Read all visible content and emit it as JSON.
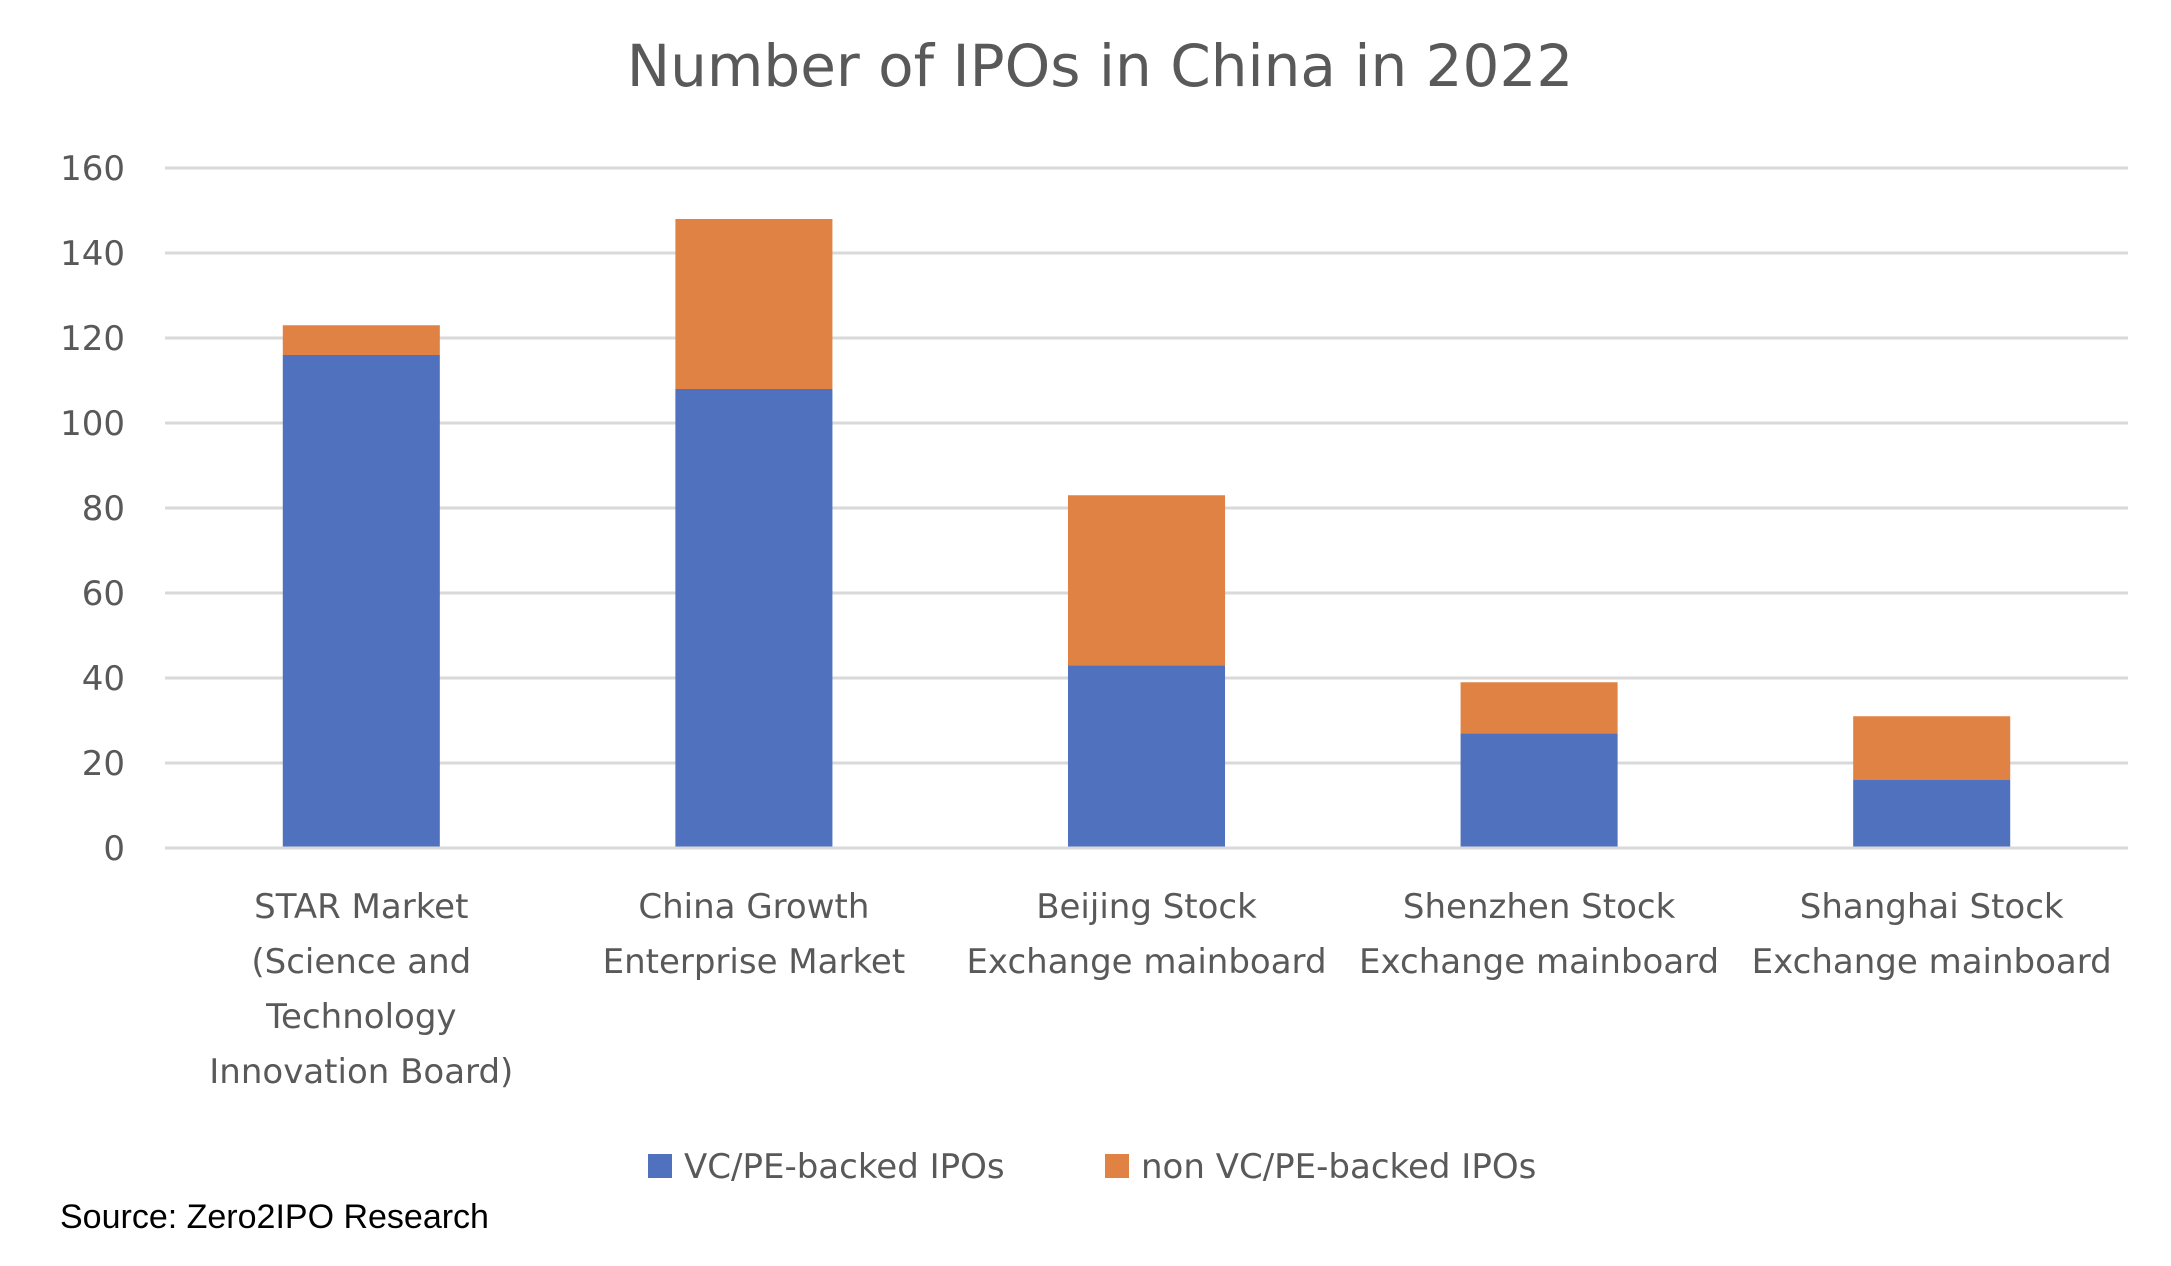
{
  "chart_data": {
    "type": "bar",
    "stacked": true,
    "title": "Number of IPOs in China in 2022",
    "xlabel": "",
    "ylabel": "",
    "ylim": [
      0,
      160
    ],
    "yticks": [
      0,
      20,
      40,
      60,
      80,
      100,
      120,
      140,
      160
    ],
    "grid": true,
    "legend_position": "bottom",
    "categories": [
      "STAR Market (Science and Technology Innovation Board)",
      "China Growth Enterprise Market",
      "Beijing Stock Exchange mainboard",
      "Shenzhen Stock Exchange mainboard",
      "Shanghai Stock Exchange mainboard"
    ],
    "category_label_lines": [
      [
        "STAR Market",
        "(Science and",
        "Technology",
        "Innovation Board)"
      ],
      [
        "China Growth",
        "Enterprise Market"
      ],
      [
        "Beijing Stock",
        "Exchange mainboard"
      ],
      [
        "Shenzhen Stock",
        "Exchange mainboard"
      ],
      [
        "Shanghai Stock",
        "Exchange mainboard"
      ]
    ],
    "series": [
      {
        "name": "VC/PE-backed IPOs",
        "color": "#4f71be",
        "values": [
          116,
          108,
          43,
          27,
          16
        ]
      },
      {
        "name": "non VC/PE-backed IPOs",
        "color": "#df8244",
        "values": [
          7,
          40,
          40,
          12,
          15
        ]
      }
    ]
  },
  "source_note": "Source: Zero2IPO Research"
}
